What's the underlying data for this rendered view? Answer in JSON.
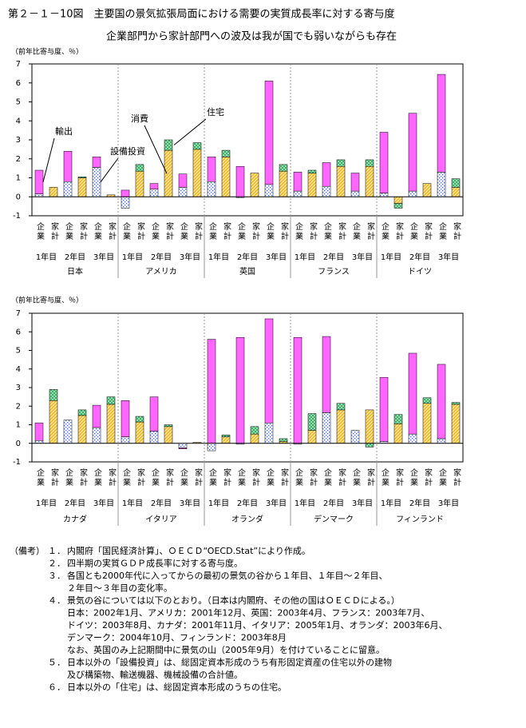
{
  "title": "第２－１－10図　主要国の景気拡張局面における需要の実質成長率に対する寄与度",
  "subtitle": "企業部門から家計部門への波及は我が国でも弱いながらも存在",
  "chart_data": [
    {
      "type": "bar",
      "stacked": true,
      "y_label": "（前年比寄与度、％）",
      "groups": [
        "日本",
        "アメリカ",
        "英国",
        "フランス",
        "ドイツ"
      ],
      "sector_labels": [
        "企業",
        "家計"
      ],
      "year_labels": [
        "1年目",
        "2年目",
        "3年目"
      ],
      "ylim": [
        -1,
        7
      ],
      "yticks": [
        -1,
        0,
        1,
        2,
        3,
        4,
        5,
        6,
        7
      ],
      "series": [
        {
          "name": "設備投資",
          "color": "#3366ff",
          "pattern": "dots",
          "values": [
            0.15,
            0,
            0.8,
            0,
            1.55,
            0,
            -0.6,
            0,
            0.4,
            0,
            0.5,
            0,
            0.8,
            0,
            -0.05,
            0,
            0.65,
            0,
            0.3,
            0,
            0.55,
            0,
            0.3,
            0,
            0.2,
            0,
            0.3,
            0,
            1.3,
            0
          ]
        },
        {
          "name": "消費",
          "color": "#f0b000",
          "pattern": "hatch",
          "values": [
            0,
            0.5,
            0,
            1.0,
            0,
            0.1,
            0,
            1.35,
            0,
            2.45,
            0,
            2.5,
            0,
            2.1,
            0,
            1.25,
            0,
            1.35,
            0,
            1.25,
            0,
            1.6,
            0,
            1.6,
            0,
            -0.35,
            0,
            0.7,
            0,
            0.5
          ]
        },
        {
          "name": "住宅",
          "color": "#22aa55",
          "pattern": "cross",
          "values": [
            0,
            0,
            0,
            0.05,
            0,
            0,
            0,
            0.35,
            0,
            0.55,
            0,
            0.35,
            0,
            0.35,
            0,
            0,
            0,
            0.35,
            0,
            0.15,
            0,
            0.35,
            0,
            0.35,
            0,
            -0.25,
            0,
            0,
            0,
            0.45
          ]
        },
        {
          "name": "輸出",
          "color": "#ff66ff",
          "pattern": "solid",
          "values": [
            1.25,
            0,
            1.6,
            0,
            0.55,
            0,
            0.35,
            0,
            0.3,
            0,
            0.7,
            0,
            1.3,
            0,
            1.6,
            0,
            5.45,
            0,
            1.0,
            0,
            1.25,
            0,
            0.95,
            0,
            3.2,
            0,
            4.1,
            0,
            5.15,
            0
          ]
        }
      ]
    },
    {
      "type": "bar",
      "stacked": true,
      "y_label": "（前年比寄与度、％）",
      "groups": [
        "カナダ",
        "イタリア",
        "オランダ",
        "デンマーク",
        "フィンランド"
      ],
      "sector_labels": [
        "企業",
        "家計"
      ],
      "year_labels": [
        "1年目",
        "2年目",
        "3年目"
      ],
      "ylim": [
        -1,
        7
      ],
      "yticks": [
        -1,
        0,
        1,
        2,
        3,
        4,
        5,
        6,
        7
      ],
      "series": [
        {
          "color": "#3366ff",
          "pattern": "dots",
          "values": [
            0.15,
            0,
            1.25,
            0,
            0.85,
            0,
            0.35,
            0,
            0.65,
            0,
            -0.25,
            0,
            -0.4,
            0,
            -0.05,
            0,
            1.1,
            0,
            -0.05,
            0,
            1.65,
            0,
            0.7,
            0,
            0.1,
            0,
            0.5,
            0,
            0.25,
            0
          ]
        },
        {
          "color": "#f0b000",
          "pattern": "hatch",
          "values": [
            0,
            2.3,
            0,
            1.5,
            0,
            2.1,
            0,
            1.15,
            0,
            0.9,
            0,
            0.05,
            0,
            0.35,
            0,
            0.5,
            0,
            0.1,
            0,
            0.7,
            0,
            1.8,
            0,
            1.8,
            0,
            1.05,
            0,
            2.15,
            0,
            2.1
          ]
        },
        {
          "color": "#22aa55",
          "pattern": "cross",
          "values": [
            0,
            0.6,
            0,
            0.3,
            0,
            0.4,
            0,
            0.3,
            0,
            0.1,
            0,
            0,
            0,
            0.1,
            0,
            0.4,
            0,
            0.15,
            0,
            0.9,
            0,
            0.35,
            0,
            -0.2,
            0,
            0.5,
            0,
            0.3,
            0,
            0.1
          ]
        },
        {
          "color": "#ff66ff",
          "pattern": "solid",
          "values": [
            0.95,
            0,
            0,
            0,
            1.2,
            0,
            1.95,
            0,
            1.85,
            0,
            -0.05,
            0,
            5.6,
            0,
            5.7,
            0,
            5.6,
            0,
            5.7,
            0,
            4.1,
            0,
            0,
            0,
            3.45,
            0,
            4.35,
            0,
            4.0,
            0
          ]
        }
      ]
    }
  ],
  "notes": {
    "label": "（備考）",
    "items": [
      {
        "num": "１．",
        "lines": [
          "内閣府「国民経済計算」、ＯＥＣＤ“OECD.Stat”により作成。"
        ]
      },
      {
        "num": "２．",
        "lines": [
          "四半期の実質ＧＤＰ成長率に対する寄与度。"
        ]
      },
      {
        "num": "３．",
        "lines": [
          "各国とも2000年代に入ってからの最初の景気の谷から１年目、１年目～２年目、",
          "２年目～３年目の変化率。"
        ]
      },
      {
        "num": "４．",
        "lines": [
          "景気の谷については以下のとおり。（日本は内閣府、その他の国はＯＥＣＤによる。）",
          "日本：2002年1月、アメリカ：2001年12月、英国：2003年4月、フランス：2003年7月、",
          "ドイツ：2003年8月、カナダ：2001年11月、イタリア：2005年1月、オランダ：2003年6月、",
          "デンマーク：2004年10月、フィンランド：2003年8月",
          "なお、英国のみ上記期間中に景気の山（2005年9月）を付けていることに留意。"
        ]
      },
      {
        "num": "５．",
        "lines": [
          "日本以外の「設備投資」は、総固定資本形成のうち有形固定資産の住宅以外の建物",
          "及び構築物、輸送機器、機械設備の合計値。"
        ]
      },
      {
        "num": "６．",
        "lines": [
          "日本以外の「住宅」は、総固定資本形成のうちの住宅。"
        ]
      }
    ]
  }
}
